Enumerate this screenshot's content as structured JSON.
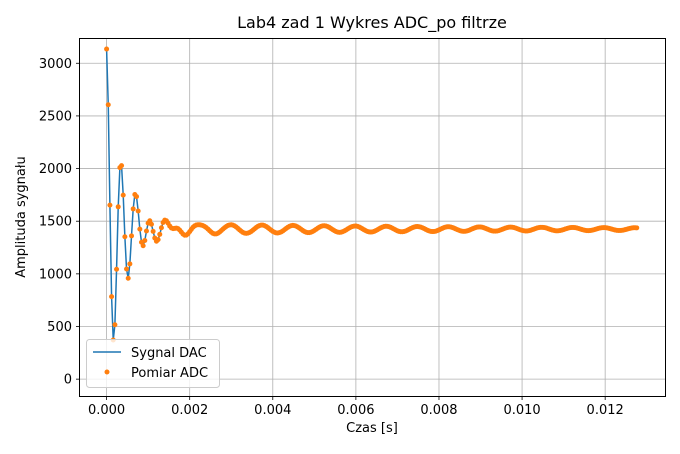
{
  "chart_data": {
    "type": "line",
    "title": "Lab4 zad 1 Wykres ADC_po filtrze",
    "xlabel": "Czas [s]",
    "ylabel": "Amplituda sygnału",
    "xlim": [
      -0.00064,
      0.01344
    ],
    "ylim": [
      -160,
      3240
    ],
    "xticks": [
      0.0,
      0.002,
      0.004,
      0.006,
      0.008,
      0.01,
      0.012
    ],
    "xtick_labels": [
      "0.000",
      "0.002",
      "0.004",
      "0.006",
      "0.008",
      "0.010",
      "0.012"
    ],
    "yticks": [
      0,
      500,
      1000,
      1500,
      2000,
      2500,
      3000
    ],
    "ytick_labels": [
      "0",
      "500",
      "1000",
      "1500",
      "2000",
      "2500",
      "3000"
    ],
    "grid": true,
    "legend_position": "lower-left",
    "series": [
      {
        "name": "Sygnal DAC",
        "style": "line",
        "color": "#1f77b4"
      },
      {
        "name": "Pomiar ADC",
        "style": "markers",
        "color": "#ff7f0e"
      }
    ],
    "sampling": {
      "dt": 4e-05,
      "n": 320
    },
    "signal_model": {
      "final": 1425,
      "fast": {
        "amplitude": 1650,
        "omega": 17950,
        "decay": 2500
      },
      "slow": {
        "amplitude": 60,
        "omega": 8400,
        "decay": 120
      }
    }
  }
}
